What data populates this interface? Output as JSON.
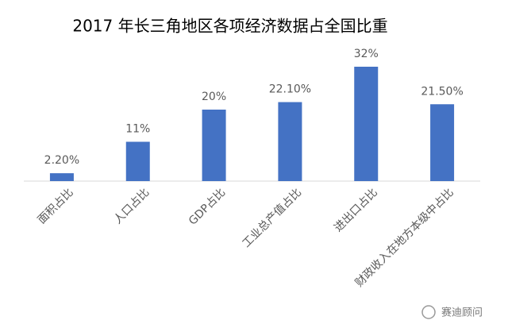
{
  "chart_data": {
    "type": "bar",
    "title": "2017 年长三角地区各项经济数据占全国比重",
    "categories": [
      "面积占比",
      "人口占比",
      "GDP占比",
      "工业总产值占比",
      "进出口占比",
      "财政收入在地方本级中占比"
    ],
    "values": [
      2.2,
      11,
      20,
      22.1,
      32,
      21.5
    ],
    "value_labels": [
      "2.20%",
      "11%",
      "20%",
      "22.10%",
      "32%",
      "21.50%"
    ],
    "color": "#4472c4"
  },
  "watermark": "赛迪顾问"
}
